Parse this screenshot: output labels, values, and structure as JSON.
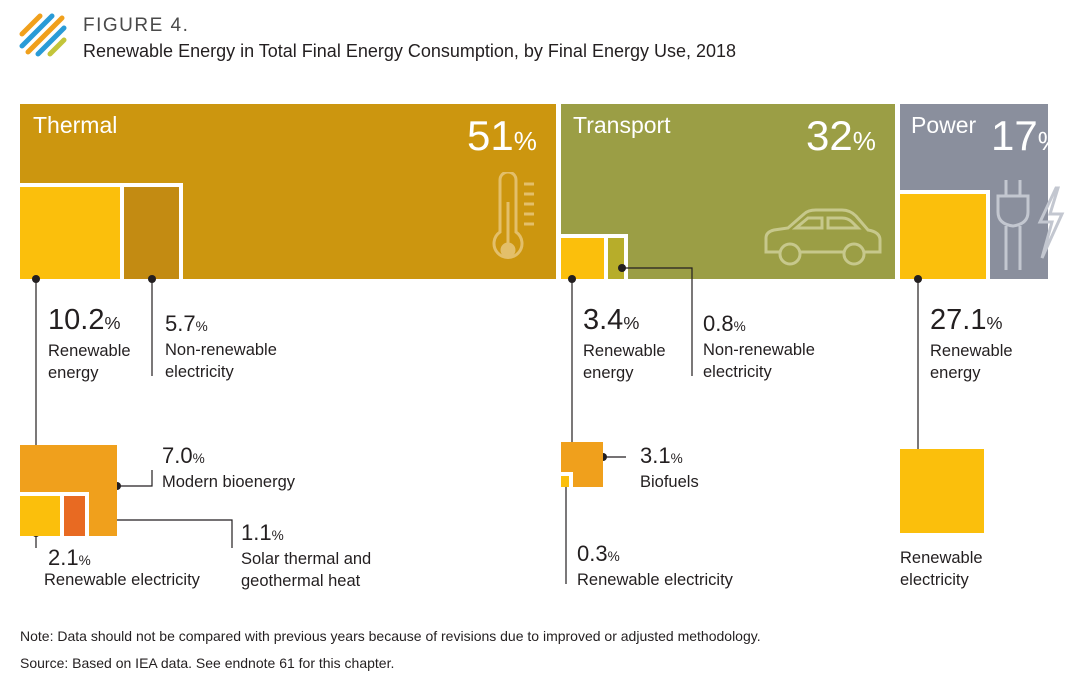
{
  "figure": {
    "label": "FIGURE 4.",
    "title": "Renewable Energy in Total Final Energy Consumption, by Final Energy Use, 2018"
  },
  "colors": {
    "thermal": "#cc960f",
    "transport": "#9b9e45",
    "power": "#8a8f9d",
    "renewable": "#fbbf0c",
    "non_renewable_thermal": "#c38b12",
    "non_renewable_transport": "#b7ad2a",
    "bio": "#f0a01c",
    "solar": "#e86a22"
  },
  "chart_data": {
    "type": "treemap",
    "unit": "%",
    "categories": [
      {
        "name": "Thermal",
        "share": 51,
        "breakdown": [
          {
            "label": "Renewable energy",
            "value": 10.2,
            "breakdown": [
              {
                "label": "Modern bioenergy",
                "value": 7.0
              },
              {
                "label": "Renewable electricity",
                "value": 2.1
              },
              {
                "label": "Solar thermal and geothermal heat",
                "value": 1.1
              }
            ]
          },
          {
            "label": "Non-renewable electricity",
            "value": 5.7
          }
        ]
      },
      {
        "name": "Transport",
        "share": 32,
        "breakdown": [
          {
            "label": "Renewable energy",
            "value": 3.4,
            "breakdown": [
              {
                "label": "Biofuels",
                "value": 3.1
              },
              {
                "label": "Renewable electricity",
                "value": 0.3
              }
            ]
          },
          {
            "label": "Non-renewable electricity",
            "value": 0.8
          }
        ]
      },
      {
        "name": "Power",
        "share": 17,
        "breakdown": [
          {
            "label": "Renewable energy",
            "value": 27.1,
            "breakdown": [
              {
                "label": "Renewable electricity",
                "value": null
              }
            ]
          }
        ]
      }
    ]
  },
  "labels": {
    "thermal": {
      "name": "Thermal",
      "pct": "51"
    },
    "transport": {
      "name": "Transport",
      "pct": "32"
    },
    "power": {
      "name": "Power",
      "pct": "17"
    },
    "pct_sign": "%",
    "t_ren_val": "10.2",
    "t_ren_l1": "Renewable",
    "t_ren_l2": "energy",
    "t_non_val": "5.7",
    "t_non_l1": "Non-renewable",
    "t_non_l2": "electricity",
    "t_bio_val": "7.0",
    "t_bio_l1": "Modern bioenergy",
    "t_rel_val": "2.1",
    "t_rel_l1": "Renewable electricity",
    "t_sol_val": "1.1",
    "t_sol_l1": "Solar thermal and",
    "t_sol_l2": "geothermal heat",
    "tr_ren_val": "3.4",
    "tr_ren_l1": "Renewable",
    "tr_ren_l2": "energy",
    "tr_non_val": "0.8",
    "tr_non_l1": "Non-renewable",
    "tr_non_l2": "electricity",
    "tr_bio_val": "3.1",
    "tr_bio_l1": "Biofuels",
    "tr_rel_val": "0.3",
    "tr_rel_l1": "Renewable electricity",
    "p_ren_val": "27.1",
    "p_ren_l1": "Renewable",
    "p_ren_l2": "energy",
    "p_rel_l1": "Renewable",
    "p_rel_l2": "electricity"
  },
  "notes": {
    "note": "Note: Data should not be compared with previous years because of revisions due to improved or adjusted methodology.",
    "source": "Source: Based on IEA data. See endnote 61 for this chapter."
  },
  "icons": [
    "logo-mark",
    "thermometer-icon",
    "car-icon",
    "plug-lightning-icon"
  ]
}
